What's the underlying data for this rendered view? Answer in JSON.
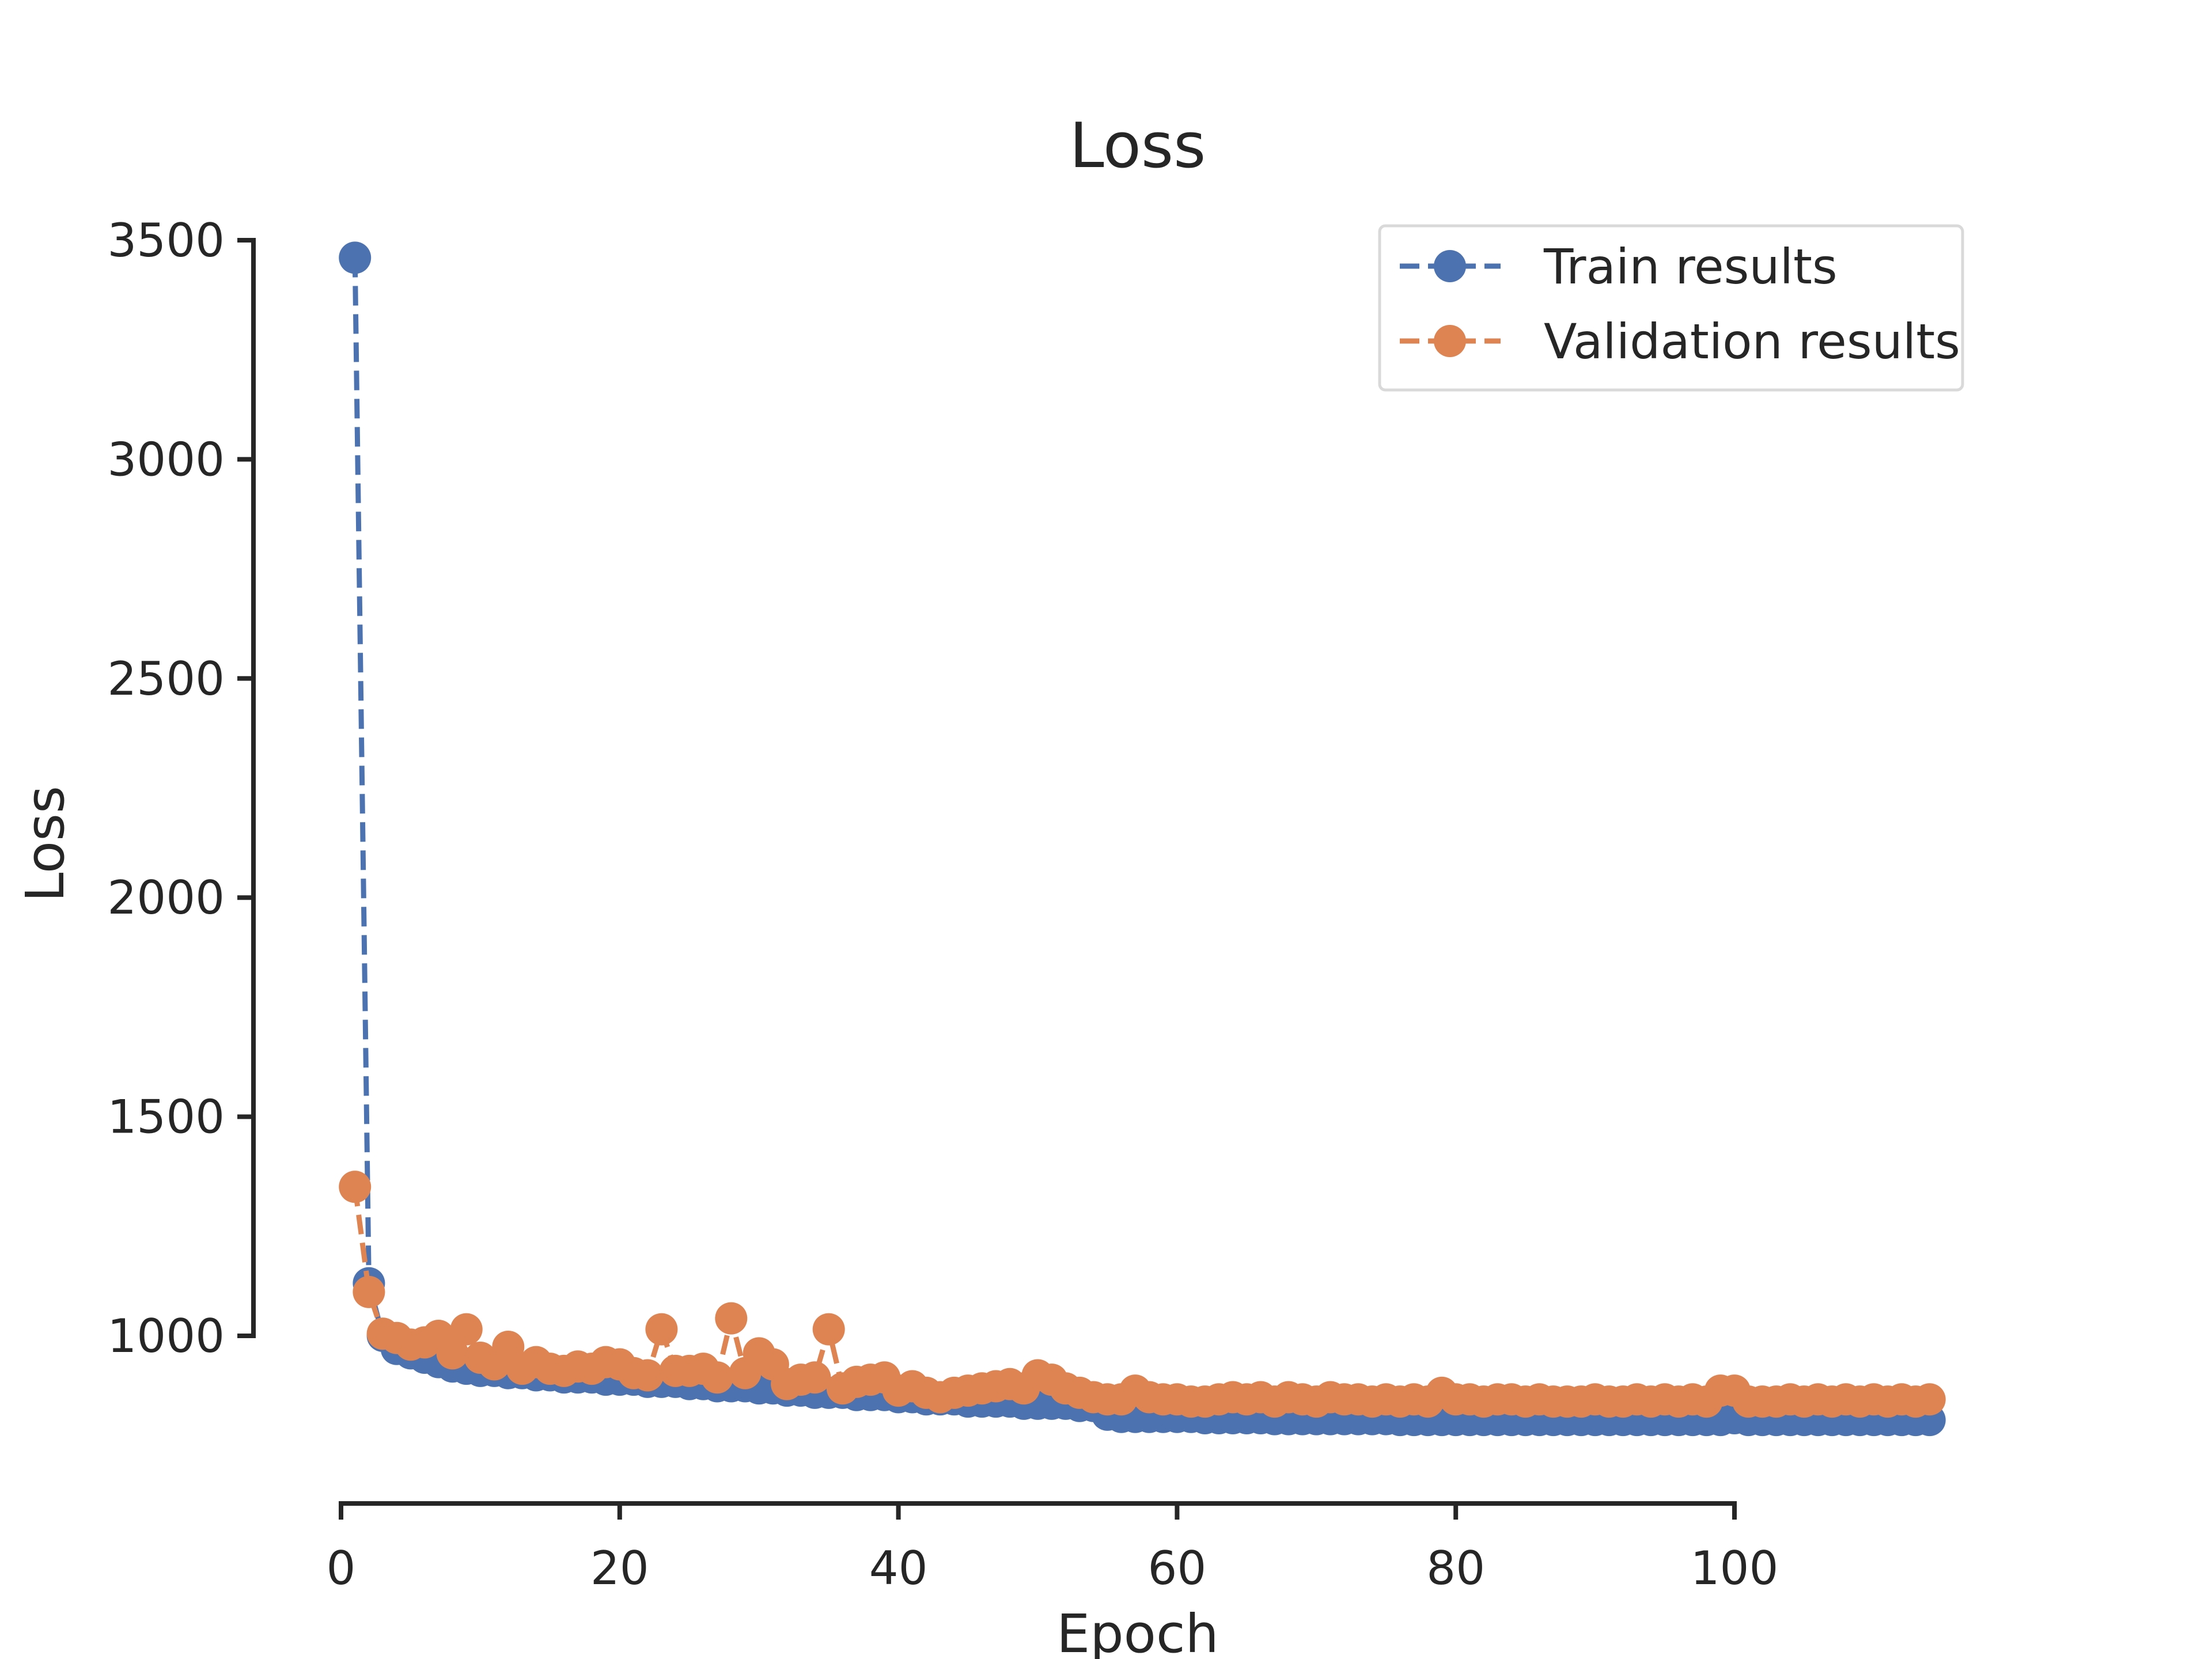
{
  "chart_data": {
    "type": "line",
    "title": "Loss",
    "xlabel": "Epoch",
    "ylabel": "Loss",
    "xlim": [
      0,
      115
    ],
    "ylim": [
      820,
      3500
    ],
    "x_ticks": [
      0,
      20,
      40,
      60,
      80,
      100
    ],
    "y_ticks": [
      1000,
      1500,
      2000,
      2500,
      3000,
      3500
    ],
    "legend_position": "top-right",
    "grid": false,
    "series": [
      {
        "name": "Train results",
        "color": "#4c72b0",
        "x": [
          1,
          2,
          3,
          4,
          5,
          6,
          7,
          8,
          9,
          10,
          11,
          12,
          13,
          14,
          15,
          16,
          17,
          18,
          19,
          20,
          21,
          22,
          23,
          24,
          25,
          26,
          27,
          28,
          29,
          30,
          31,
          32,
          33,
          34,
          35,
          36,
          37,
          38,
          39,
          40,
          41,
          42,
          43,
          44,
          45,
          46,
          47,
          48,
          49,
          50,
          51,
          52,
          53,
          54,
          55,
          56,
          57,
          58,
          59,
          60,
          61,
          62,
          63,
          64,
          65,
          66,
          67,
          68,
          69,
          70,
          71,
          72,
          73,
          74,
          75,
          76,
          77,
          78,
          79,
          80,
          81,
          82,
          83,
          84,
          85,
          86,
          87,
          88,
          89,
          90,
          91,
          92,
          93,
          94,
          95,
          96,
          97,
          98,
          99,
          100,
          101,
          102,
          103,
          104,
          105,
          106,
          107,
          108,
          109,
          110,
          111,
          112,
          113,
          114
        ],
        "values": [
          3460,
          1120,
          1000,
          970,
          960,
          950,
          940,
          930,
          925,
          920,
          920,
          915,
          915,
          910,
          910,
          905,
          905,
          905,
          900,
          900,
          900,
          895,
          895,
          895,
          890,
          890,
          885,
          885,
          885,
          880,
          880,
          875,
          875,
          870,
          870,
          870,
          865,
          865,
          865,
          860,
          860,
          855,
          855,
          855,
          850,
          850,
          850,
          850,
          845,
          845,
          845,
          845,
          840,
          840,
          820,
          815,
          815,
          815,
          815,
          815,
          815,
          812,
          812,
          812,
          812,
          812,
          810,
          810,
          810,
          810,
          810,
          810,
          810,
          810,
          810,
          808,
          808,
          808,
          808,
          808,
          808,
          808,
          808,
          808,
          808,
          808,
          808,
          808,
          808,
          808,
          808,
          808,
          808,
          808,
          808,
          808,
          808,
          808,
          808,
          812,
          808,
          808,
          808,
          808,
          808,
          808,
          808,
          808,
          808,
          808,
          808,
          808,
          808,
          808
        ]
      },
      {
        "name": "Validation results",
        "color": "#dd8452",
        "x": [
          1,
          2,
          3,
          4,
          5,
          6,
          7,
          8,
          9,
          10,
          11,
          12,
          13,
          14,
          15,
          16,
          17,
          18,
          19,
          20,
          21,
          22,
          23,
          24,
          25,
          26,
          27,
          28,
          29,
          30,
          31,
          32,
          33,
          34,
          35,
          36,
          37,
          38,
          39,
          40,
          41,
          42,
          43,
          44,
          45,
          46,
          47,
          48,
          49,
          50,
          51,
          52,
          53,
          54,
          55,
          56,
          57,
          58,
          59,
          60,
          61,
          62,
          63,
          64,
          65,
          66,
          67,
          68,
          69,
          70,
          71,
          72,
          73,
          74,
          75,
          76,
          77,
          78,
          79,
          80,
          81,
          82,
          83,
          84,
          85,
          86,
          87,
          88,
          89,
          90,
          91,
          92,
          93,
          94,
          95,
          96,
          97,
          98,
          99,
          100,
          101,
          102,
          103,
          104,
          105,
          106,
          107,
          108,
          109,
          110,
          111,
          112,
          113,
          114
        ],
        "values": [
          1340,
          1100,
          1005,
          995,
          980,
          985,
          1000,
          960,
          1015,
          950,
          935,
          975,
          925,
          940,
          925,
          920,
          930,
          925,
          940,
          935,
          915,
          910,
          1015,
          920,
          920,
          925,
          905,
          1040,
          915,
          960,
          935,
          890,
          900,
          905,
          1015,
          880,
          895,
          900,
          905,
          875,
          885,
          870,
          860,
          870,
          875,
          880,
          885,
          890,
          880,
          910,
          900,
          880,
          870,
          860,
          855,
          855,
          875,
          860,
          855,
          855,
          850,
          850,
          855,
          860,
          855,
          860,
          850,
          860,
          855,
          850,
          860,
          855,
          855,
          850,
          855,
          850,
          855,
          850,
          870,
          855,
          855,
          850,
          855,
          855,
          850,
          855,
          850,
          850,
          850,
          855,
          850,
          850,
          855,
          850,
          855,
          850,
          855,
          850,
          875,
          875,
          850,
          850,
          850,
          855,
          850,
          855,
          850,
          855,
          850,
          855,
          850,
          855,
          850,
          855
        ]
      }
    ]
  }
}
